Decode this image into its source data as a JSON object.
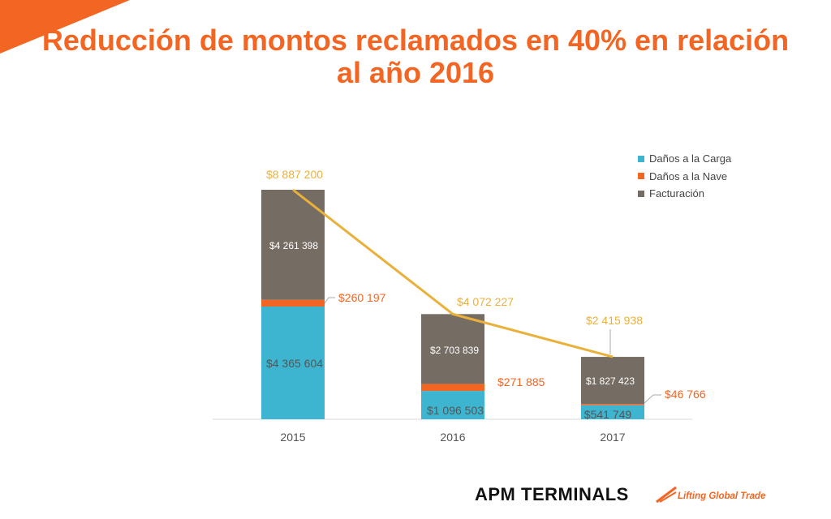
{
  "title": "Reducción de montos reclamados en 40% en relación al año 2016",
  "colors": {
    "accent": "#f26522",
    "carga": "#3db5d0",
    "nave": "#f26522",
    "facturacion": "#756d63",
    "line": "#eab13a"
  },
  "chart_data": {
    "type": "bar",
    "stacked": true,
    "categories": [
      "2015",
      "2016",
      "2017"
    ],
    "series": [
      {
        "name": "Daños a la Carga",
        "values": [
          4365604,
          1096503,
          541749
        ],
        "labels": [
          "$4 365 604",
          "$1 096 503",
          "$541 749"
        ]
      },
      {
        "name": "Daños a la Nave",
        "values": [
          260197,
          271885,
          46766
        ],
        "labels": [
          "$260 197",
          "$271 885",
          "$46 766"
        ]
      },
      {
        "name": "Facturación",
        "values": [
          4261398,
          2703839,
          1827423
        ],
        "labels": [
          "$4 261 398",
          "$2 703 839",
          "$1 827 423"
        ]
      }
    ],
    "totals": {
      "type": "line",
      "values": [
        8887200,
        4072227,
        2415938
      ],
      "labels": [
        "$8 887 200",
        "$4 072 227",
        "$2 415 938"
      ]
    },
    "legend_position": "top-right",
    "grid": false
  },
  "logo": {
    "name": "APM TERMINALS",
    "tagline": "Lifting Global Trade"
  }
}
